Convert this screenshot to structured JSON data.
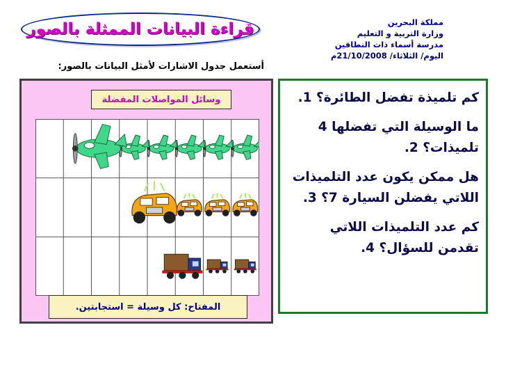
{
  "title": "قراءة البيانات الممثلة بالصور",
  "header": {
    "lines": [
      "مملكة البحرين",
      "وزارة التربية و التعليم",
      "مدرسة أسماء ذات النطاقين",
      "اليوم/ الثلاثاء/ 21/10/2008م"
    ]
  },
  "instruction": "أستعمل جدول الاشارات لأمثل البيانات بالصور:",
  "chart": {
    "header": "وسائل المواصلات المفضلة",
    "rows": [
      {
        "name": "plane",
        "count": 6
      },
      {
        "name": "car",
        "count": 4
      },
      {
        "name": "truck",
        "count": 3
      }
    ],
    "key": "المفتاح: كل وسيلة = استجابتين."
  },
  "questions": [
    "كم تلميذة تفضل الطائرة؟ 1.",
    "ما الوسيلة التي تفضلها 4 تلميذات؟ 2.",
    "هل ممكن يكون عدد التلميذات اللاتي يفضلن السيارة 7؟ 3.",
    "كم عدد التلميذات اللاتي تقدمن للسؤال؟ 4."
  ],
  "colors": {
    "title": "#d400c8",
    "panel_pink": "#fbc6f3",
    "label_yellow": "#fbf2c2",
    "plane": "#3fd88a",
    "car": "#f0a818",
    "truck": "#8a5a2a"
  }
}
